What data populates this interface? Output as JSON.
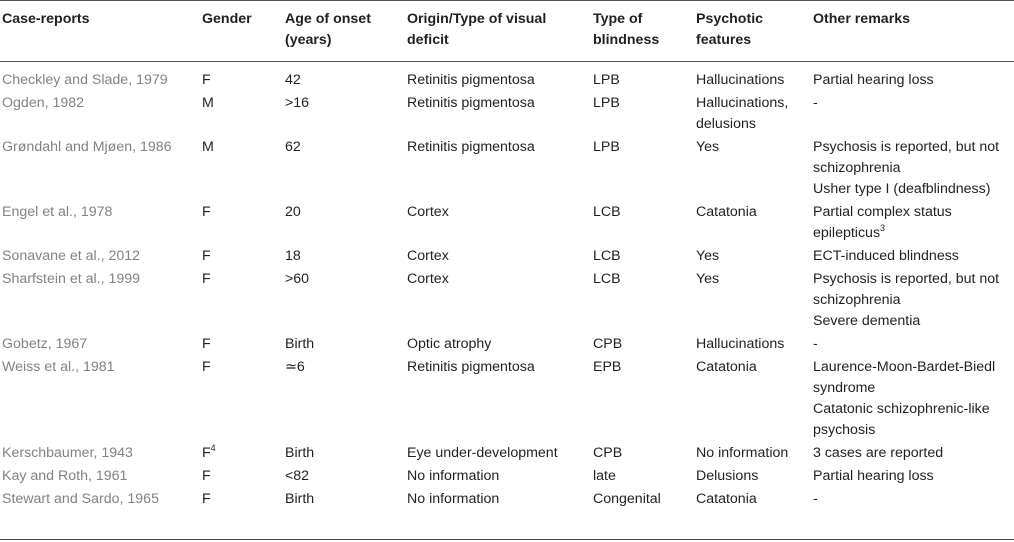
{
  "table": {
    "headers": [
      "Case-reports",
      "Gender",
      "Age of onset (years)",
      "Origin/Type of visual deficit",
      "Type of blindness",
      "Psychotic features",
      "Other remarks"
    ],
    "rows": [
      {
        "case": "Checkley and Slade, 1979",
        "gender": "F",
        "gender_sup": "",
        "age": "42",
        "origin": "Retinitis pigmentosa",
        "blindness": "LPB",
        "psychotic": "Hallucinations",
        "remarks": "Partial hearing loss",
        "remarks_sup": ""
      },
      {
        "case": "Ogden, 1982",
        "gender": "M",
        "gender_sup": "",
        "age": ">16",
        "origin": "Retinitis pigmentosa",
        "blindness": "LPB",
        "psychotic": "Hallucinations, delusions",
        "remarks": "-",
        "remarks_sup": ""
      },
      {
        "case": "Grøndahl and Mjøen, 1986",
        "gender": "M",
        "gender_sup": "",
        "age": "62",
        "origin": "Retinitis pigmentosa",
        "blindness": "LPB",
        "psychotic": "Yes",
        "remarks": "Psychosis is reported, but not schizophrenia\nUsher type I (deafblindness)",
        "remarks_sup": ""
      },
      {
        "case": "Engel et al., 1978",
        "gender": "F",
        "gender_sup": "",
        "age": "20",
        "origin": "Cortex",
        "blindness": "LCB",
        "psychotic": "Catatonia",
        "remarks": "Partial complex status epilepticus",
        "remarks_sup": "3"
      },
      {
        "case": "Sonavane et al., 2012",
        "gender": "F",
        "gender_sup": "",
        "age": "18",
        "origin": "Cortex",
        "blindness": "LCB",
        "psychotic": "Yes",
        "remarks": "ECT-induced blindness",
        "remarks_sup": ""
      },
      {
        "case": "Sharfstein et al., 1999",
        "gender": "F",
        "gender_sup": "",
        "age": ">60",
        "origin": "Cortex",
        "blindness": "LCB",
        "psychotic": "Yes",
        "remarks": "Psychosis is reported, but not schizophrenia\nSevere dementia",
        "remarks_sup": ""
      },
      {
        "case": "Gobetz, 1967",
        "gender": "F",
        "gender_sup": "",
        "age": "Birth",
        "origin": "Optic atrophy",
        "blindness": "CPB",
        "psychotic": "Hallucinations",
        "remarks": "-",
        "remarks_sup": ""
      },
      {
        "case": "Weiss et al., 1981",
        "gender": "F",
        "gender_sup": "",
        "age": "≃6",
        "origin": "Retinitis pigmentosa",
        "blindness": "EPB",
        "psychotic": "Catatonia",
        "remarks": "Laurence-Moon-Bardet-Biedl syndrome\nCatatonic schizophrenic-like psychosis",
        "remarks_sup": ""
      },
      {
        "case": "Kerschbaumer, 1943",
        "gender": "F",
        "gender_sup": "4",
        "age": "Birth",
        "origin": "Eye under-development",
        "blindness": "CPB",
        "psychotic": "No information",
        "remarks": "3 cases are reported",
        "remarks_sup": ""
      },
      {
        "case": "Kay and Roth, 1961",
        "gender": "F",
        "gender_sup": "",
        "age": "<82",
        "origin": "No information",
        "blindness": "late",
        "psychotic": "Delusions",
        "remarks": "Partial hearing loss",
        "remarks_sup": ""
      },
      {
        "case": "Stewart and Sardo, 1965",
        "gender": "F",
        "gender_sup": "",
        "age": "Birth",
        "origin": "No information",
        "blindness": "Congenital",
        "psychotic": "Catatonia",
        "remarks": "-",
        "remarks_sup": ""
      }
    ]
  }
}
